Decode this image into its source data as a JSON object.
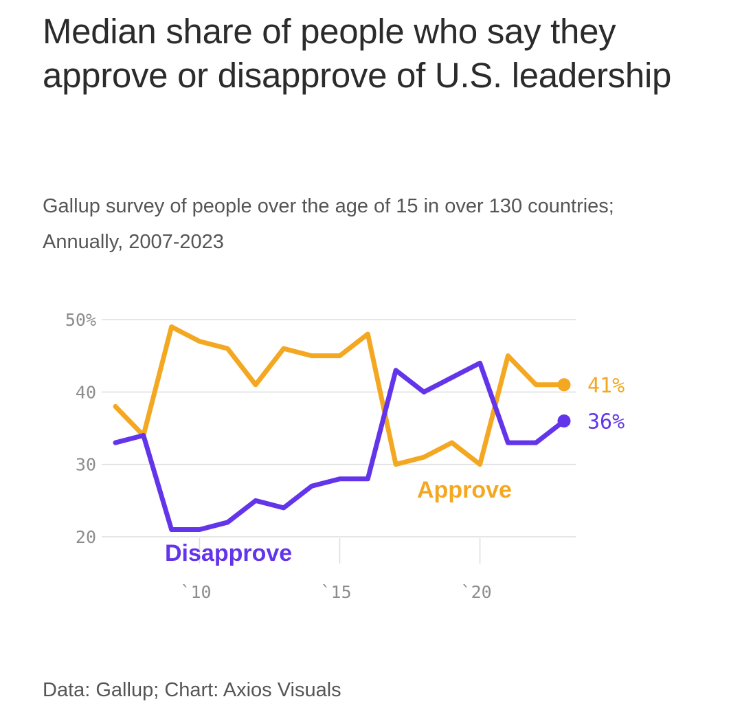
{
  "header": {
    "title": "Median share of people who say they approve or disapprove of U.S. leadership",
    "subtitle": "Gallup survey of people over the age of 15 in over 130 countries; Annually, 2007-2023"
  },
  "footer": {
    "source": "Data: Gallup; Chart: Axios Visuals"
  },
  "chart_data": {
    "type": "line",
    "title": "Median share of people who say they approve or disapprove of U.S. leadership",
    "subtitle": "Gallup survey of people over the age of 15 in over 130 countries; Annually, 2007-2023",
    "xlabel": "",
    "ylabel": "",
    "x": [
      2007,
      2008,
      2009,
      2010,
      2011,
      2012,
      2013,
      2014,
      2015,
      2016,
      2017,
      2018,
      2019,
      2020,
      2021,
      2022,
      2023
    ],
    "xlim": [
      2007,
      2023
    ],
    "ylim": [
      20,
      50
    ],
    "grid": true,
    "x_ticks": [
      {
        "value": 2010,
        "label": "`10"
      },
      {
        "value": 2015,
        "label": "`15"
      },
      {
        "value": 2020,
        "label": "`20"
      }
    ],
    "y_ticks": [
      {
        "value": 50,
        "label": "50%"
      },
      {
        "value": 40,
        "label": "40"
      },
      {
        "value": 30,
        "label": "30"
      },
      {
        "value": 20,
        "label": "20"
      }
    ],
    "series": [
      {
        "key": "approve",
        "name": "Approve",
        "color": "#f4a821",
        "values": [
          38,
          34,
          49,
          47,
          46,
          41,
          46,
          45,
          45,
          48,
          30,
          31,
          33,
          30,
          45,
          41,
          41
        ],
        "end_label": "41%"
      },
      {
        "key": "disapprove",
        "name": "Disapprove",
        "color": "#6335ea",
        "values": [
          33,
          34,
          21,
          21,
          22,
          25,
          24,
          27,
          28,
          28,
          43,
          40,
          42,
          44,
          33,
          33,
          36
        ],
        "end_label": "36%"
      }
    ]
  }
}
